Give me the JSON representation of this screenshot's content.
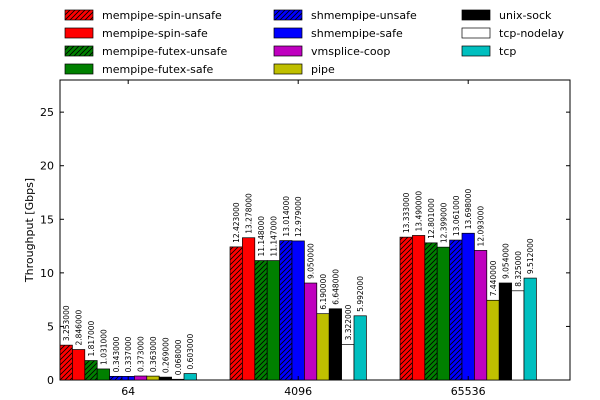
{
  "chart_data": {
    "type": "bar",
    "title": "",
    "xlabel": "",
    "ylabel": "Throughput [Gbps]",
    "ylim": [
      0,
      28
    ],
    "yticks": [
      0,
      5,
      10,
      15,
      20,
      25
    ],
    "grid": false,
    "legend_position": "top",
    "categories": [
      "64",
      "4096",
      "65536"
    ],
    "series": [
      {
        "name": "mempipe-spin-unsafe",
        "color": "#ff0000",
        "hatch": true,
        "values": [
          3.253,
          12.423,
          13.333
        ]
      },
      {
        "name": "mempipe-spin-safe",
        "color": "#ff0000",
        "hatch": false,
        "values": [
          2.846,
          13.278,
          13.49
        ]
      },
      {
        "name": "mempipe-futex-unsafe",
        "color": "#008000",
        "hatch": true,
        "values": [
          1.817,
          11.148,
          12.801
        ]
      },
      {
        "name": "mempipe-futex-safe",
        "color": "#008000",
        "hatch": false,
        "values": [
          1.031,
          11.147,
          12.399
        ]
      },
      {
        "name": "shmempipe-unsafe",
        "color": "#0000ff",
        "hatch": true,
        "values": [
          0.343,
          13.014,
          13.061
        ]
      },
      {
        "name": "shmempipe-safe",
        "color": "#0000ff",
        "hatch": false,
        "values": [
          0.337,
          12.979,
          13.698
        ]
      },
      {
        "name": "vmsplice-coop",
        "color": "#bf00bf",
        "hatch": false,
        "values": [
          0.373,
          9.05,
          12.093
        ]
      },
      {
        "name": "pipe",
        "color": "#bfbf00",
        "hatch": false,
        "values": [
          0.363,
          6.19,
          7.44
        ]
      },
      {
        "name": "unix-sock",
        "color": "#000000",
        "hatch": false,
        "values": [
          0.269,
          6.648,
          9.054
        ]
      },
      {
        "name": "tcp-nodelay",
        "color": "#ffffff",
        "hatch": false,
        "values": [
          0.068,
          3.322,
          8.325
        ]
      },
      {
        "name": "tcp",
        "color": "#00bfbf",
        "hatch": false,
        "values": [
          0.603,
          5.992,
          9.512
        ]
      }
    ],
    "data_labels": [
      [
        "3.253000",
        "12.423000",
        "13.333000"
      ],
      [
        "2.846000",
        "13.278000",
        "13.490000"
      ],
      [
        "1.817000",
        "11.148000",
        "12.801000"
      ],
      [
        "1.031000",
        "11.147000",
        "12.399000"
      ],
      [
        "0.343000",
        "13.014000",
        "13.061000"
      ],
      [
        "0.337000",
        "12.979000",
        "13.698000"
      ],
      [
        "0.373000",
        "9.050000",
        "12.093000"
      ],
      [
        "0.363000",
        "6.190000",
        "7.440000"
      ],
      [
        "0.269000",
        "6.648000",
        "9.054000"
      ],
      [
        "0.068000",
        "3.322000",
        "8.325000"
      ],
      [
        "0.603000",
        "5.992000",
        "9.512000"
      ]
    ]
  }
}
